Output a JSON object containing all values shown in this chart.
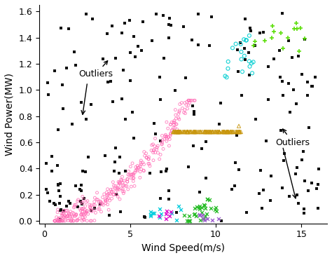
{
  "xlabel": "Wind Speed(m/s)",
  "ylabel": "Wind Power(MW)",
  "xlim": [
    -0.3,
    16.5
  ],
  "ylim": [
    -0.02,
    1.65
  ],
  "xticks": [
    0,
    5,
    10,
    15
  ],
  "yticks": [
    0.0,
    0.2,
    0.4,
    0.6,
    0.8,
    1.0,
    1.2,
    1.4,
    1.6
  ],
  "outlier_color": "#111111",
  "n_outliers": 200,
  "seed": 77
}
